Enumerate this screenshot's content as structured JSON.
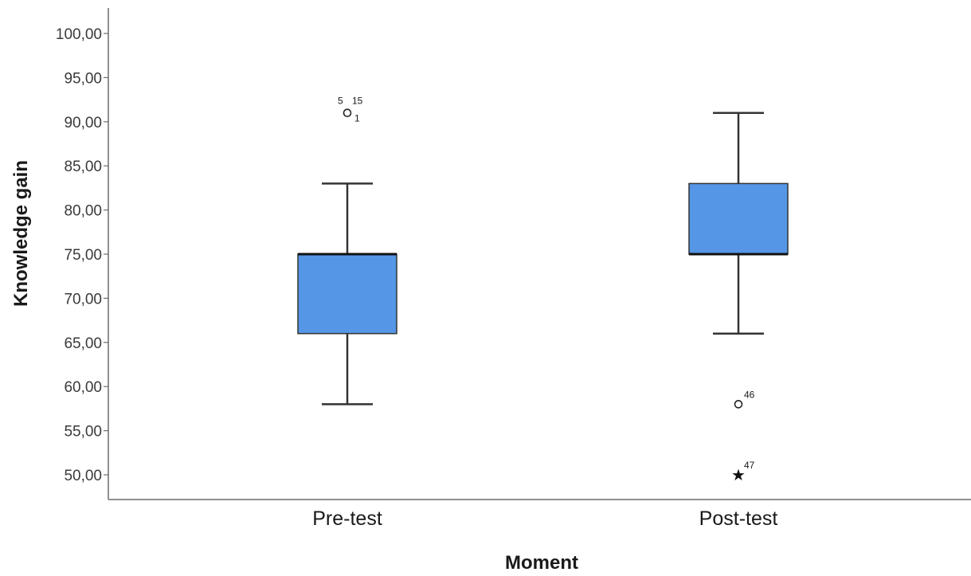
{
  "chart_data": {
    "type": "boxplot",
    "title": "",
    "xlabel": "Moment",
    "ylabel": "Knowledge gain",
    "ylim": [
      48,
      102
    ],
    "yticks": [
      {
        "value": 50,
        "label": "50,00"
      },
      {
        "value": 55,
        "label": "55,00"
      },
      {
        "value": 60,
        "label": "60,00"
      },
      {
        "value": 65,
        "label": "65,00"
      },
      {
        "value": 70,
        "label": "70,00"
      },
      {
        "value": 75,
        "label": "75,00"
      },
      {
        "value": 80,
        "label": "80,00"
      },
      {
        "value": 85,
        "label": "85,00"
      },
      {
        "value": 90,
        "label": "90,00"
      },
      {
        "value": 95,
        "label": "95,00"
      },
      {
        "value": 100,
        "label": "100,00"
      }
    ],
    "grid": false,
    "box_color": "#5596e6",
    "categories": [
      "Pre-test",
      "Post-test"
    ],
    "boxes": [
      {
        "category": "Pre-test",
        "whisker_low": 58,
        "q1": 66,
        "median": 75,
        "q3": 75,
        "whisker_high": 83,
        "outliers": [
          {
            "value": 91,
            "marker": "circle",
            "labels": [
              "5",
              "15",
              "1"
            ]
          }
        ]
      },
      {
        "category": "Post-test",
        "whisker_low": 66,
        "q1": 75,
        "median": 75,
        "q3": 83,
        "whisker_high": 91,
        "outliers": [
          {
            "value": 58,
            "marker": "circle",
            "labels": [
              "46"
            ]
          },
          {
            "value": 50,
            "marker": "star",
            "labels": [
              "47"
            ]
          }
        ]
      }
    ]
  }
}
